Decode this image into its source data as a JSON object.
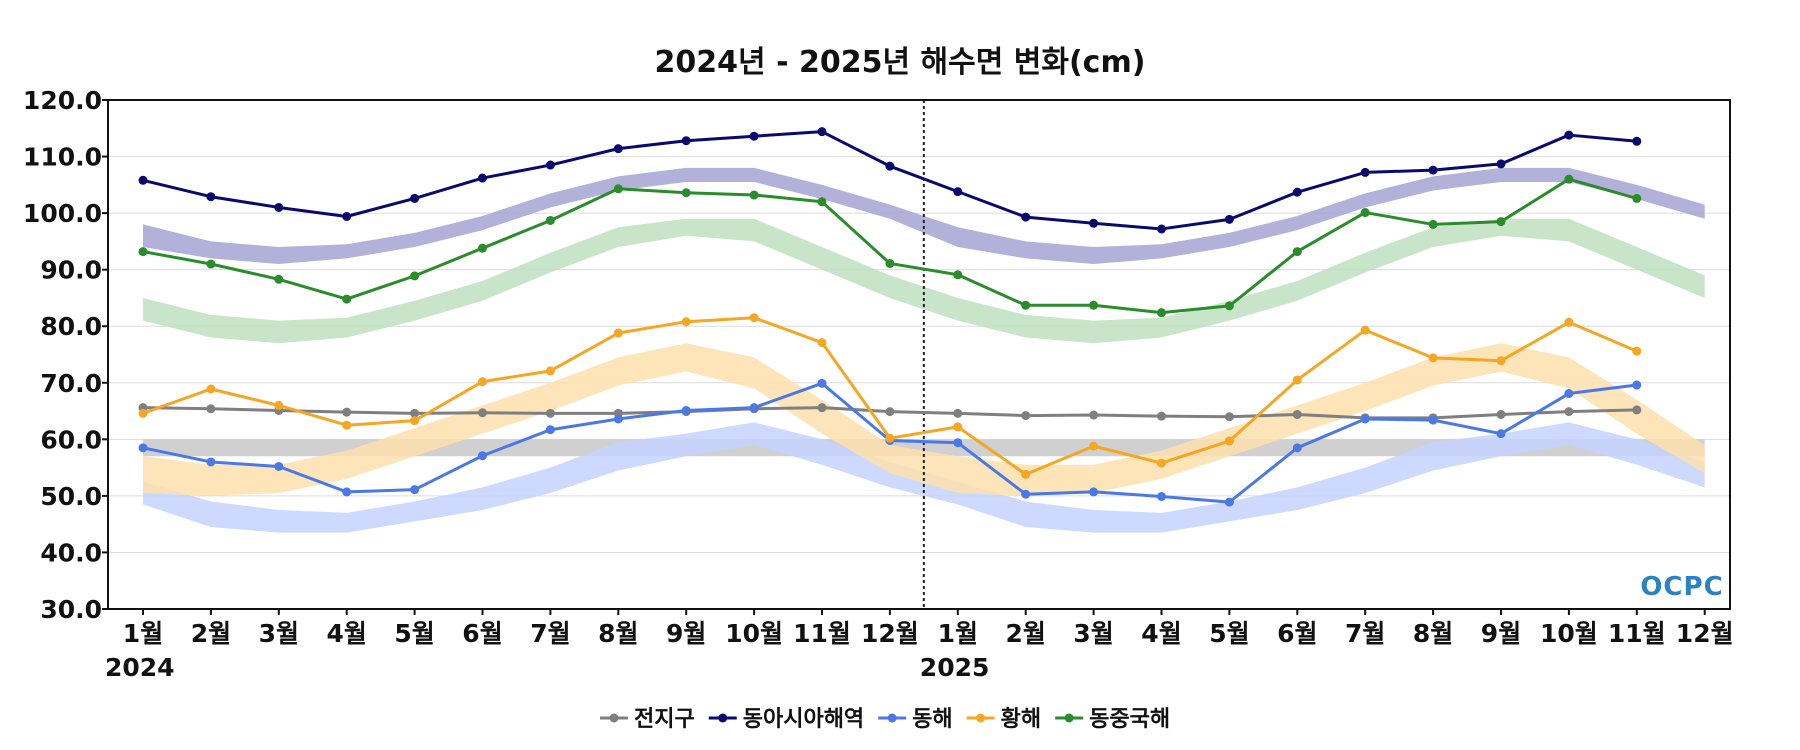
{
  "chart_data": {
    "type": "line",
    "title": "2024년 - 2025년 해수면 변화(cm)",
    "ylim": [
      30.0,
      120.0
    ],
    "yticks": [
      "120.0",
      "110.0",
      "100.0",
      "90.0",
      "80.0",
      "70.0",
      "60.0",
      "50.0",
      "40.0",
      "30.0"
    ],
    "ytick_values": [
      120,
      110,
      100,
      90,
      80,
      70,
      60,
      50,
      40,
      30
    ],
    "x_labels": [
      "1월",
      "2월",
      "3월",
      "4월",
      "5월",
      "6월",
      "7월",
      "8월",
      "9월",
      "10월",
      "11월",
      "12월",
      "1월",
      "2월",
      "3월",
      "4월",
      "5월",
      "6월",
      "7월",
      "8월",
      "9월",
      "10월",
      "11월",
      "12월"
    ],
    "years": [
      {
        "label": "2024",
        "month_index": 0
      },
      {
        "label": "2025",
        "month_index": 12
      }
    ],
    "year_divider_after_index": 11,
    "grid": true,
    "legend_position": "bottom",
    "series": [
      {
        "name": "전지구",
        "color": "#7f7f7f",
        "values": [
          65.6,
          65.4,
          65.1,
          64.8,
          64.6,
          64.7,
          64.6,
          64.6,
          64.9,
          65.4,
          65.6,
          64.9,
          64.6,
          64.2,
          64.3,
          64.1,
          64.0,
          64.4,
          63.8,
          63.8,
          64.4,
          64.9,
          65.2,
          null
        ],
        "band_color": "#c8c8c8",
        "band_low": [
          57.0,
          57.0,
          57.0,
          57.0,
          57.0,
          57.0,
          57.0,
          57.0,
          57.0,
          57.0,
          57.0,
          57.0,
          57.0,
          57.0,
          57.0,
          57.0,
          57.0,
          57.0,
          57.0,
          57.0,
          57.0,
          57.0,
          57.0,
          57.0
        ],
        "band_high": [
          60.0,
          60.0,
          60.0,
          60.0,
          60.0,
          60.0,
          60.0,
          60.0,
          60.0,
          60.0,
          60.0,
          60.0,
          60.0,
          60.0,
          60.0,
          60.0,
          60.0,
          60.0,
          60.0,
          60.0,
          60.0,
          60.0,
          60.0,
          60.0
        ]
      },
      {
        "name": "동아시아해역",
        "color": "#0a0a6e",
        "values": [
          105.8,
          102.9,
          101.0,
          99.4,
          102.6,
          106.2,
          108.5,
          111.4,
          112.8,
          113.6,
          114.4,
          108.3,
          103.8,
          99.3,
          98.2,
          97.2,
          98.9,
          103.7,
          107.2,
          107.6,
          108.7,
          113.8,
          112.7,
          null
        ],
        "band_color": "#a3a3d4",
        "band_low": [
          94.0,
          92.0,
          91.0,
          92.0,
          94.0,
          97.0,
          101.0,
          104.0,
          105.5,
          105.5,
          102.5,
          99.0,
          94.0,
          92.0,
          91.0,
          92.0,
          94.0,
          97.0,
          101.0,
          104.0,
          105.5,
          105.5,
          102.5,
          99.0
        ],
        "band_high": [
          98.0,
          95.0,
          94.0,
          94.5,
          96.5,
          99.5,
          103.5,
          106.5,
          108.0,
          108.0,
          105.0,
          101.5,
          97.5,
          95.0,
          94.0,
          94.5,
          96.5,
          99.5,
          103.5,
          106.5,
          108.0,
          108.0,
          105.0,
          101.5
        ]
      },
      {
        "name": "동해",
        "color": "#4a78e6",
        "values": [
          58.5,
          56.0,
          55.2,
          50.7,
          51.1,
          57.1,
          61.7,
          63.6,
          65.1,
          65.6,
          69.9,
          59.8,
          59.4,
          50.3,
          50.7,
          49.9,
          48.9,
          58.5,
          63.6,
          63.4,
          61.0,
          68.1,
          69.6,
          null
        ],
        "band_color": "#c4d2ff",
        "band_low": [
          48.5,
          44.5,
          43.5,
          43.5,
          45.5,
          47.5,
          50.5,
          54.5,
          57.0,
          59.0,
          55.5,
          51.5,
          48.5,
          44.5,
          43.5,
          43.5,
          45.5,
          47.5,
          50.5,
          54.5,
          57.0,
          59.0,
          55.5,
          51.5
        ],
        "band_high": [
          52.5,
          49.0,
          47.5,
          47.0,
          49.0,
          51.5,
          55.0,
          59.5,
          61.0,
          63.0,
          60.0,
          56.0,
          52.5,
          49.0,
          47.5,
          47.0,
          49.0,
          51.5,
          55.0,
          59.5,
          61.0,
          63.0,
          60.0,
          56.0
        ]
      },
      {
        "name": "황해",
        "color": "#f5a623",
        "values": [
          64.6,
          68.9,
          66.0,
          62.5,
          63.3,
          70.2,
          72.1,
          78.8,
          80.8,
          81.5,
          77.1,
          60.2,
          62.2,
          53.8,
          58.8,
          55.8,
          59.7,
          70.5,
          79.3,
          74.4,
          73.9,
          80.7,
          75.6,
          null
        ],
        "band_color": "#fde0ad",
        "band_low": [
          50.5,
          50.0,
          50.5,
          53.0,
          57.0,
          61.0,
          65.0,
          69.5,
          72.0,
          69.0,
          61.0,
          54.0,
          50.5,
          50.0,
          50.5,
          53.0,
          57.0,
          61.0,
          65.0,
          69.5,
          72.0,
          69.0,
          61.0,
          54.0
        ],
        "band_high": [
          57.0,
          55.5,
          55.5,
          58.0,
          62.0,
          66.0,
          70.0,
          74.5,
          77.0,
          74.5,
          67.0,
          59.0,
          57.0,
          55.5,
          55.5,
          58.0,
          62.0,
          66.0,
          70.0,
          74.5,
          77.0,
          74.5,
          67.0,
          59.0
        ]
      },
      {
        "name": "동중국해",
        "color": "#2a8c2a",
        "values": [
          93.2,
          91.0,
          88.3,
          84.8,
          88.9,
          93.8,
          98.7,
          104.3,
          103.6,
          103.2,
          102.0,
          91.1,
          89.1,
          83.7,
          83.7,
          82.4,
          83.6,
          93.2,
          100.1,
          98.0,
          98.5,
          106.0,
          102.6,
          null
        ],
        "band_color": "#bfe0bf",
        "band_low": [
          81.0,
          78.0,
          77.0,
          78.0,
          81.0,
          84.5,
          89.5,
          94.0,
          96.0,
          95.0,
          90.0,
          85.0,
          81.0,
          78.0,
          77.0,
          78.0,
          81.0,
          84.5,
          89.5,
          94.0,
          96.0,
          95.0,
          90.0,
          85.0
        ],
        "band_high": [
          85.0,
          82.0,
          81.0,
          81.5,
          84.5,
          88.0,
          93.0,
          97.5,
          99.0,
          99.0,
          94.0,
          89.0,
          85.0,
          82.0,
          81.0,
          81.5,
          84.5,
          88.0,
          93.0,
          97.5,
          99.0,
          99.0,
          94.0,
          89.0
        ]
      }
    ]
  },
  "logo": {
    "text": "OCPC"
  }
}
